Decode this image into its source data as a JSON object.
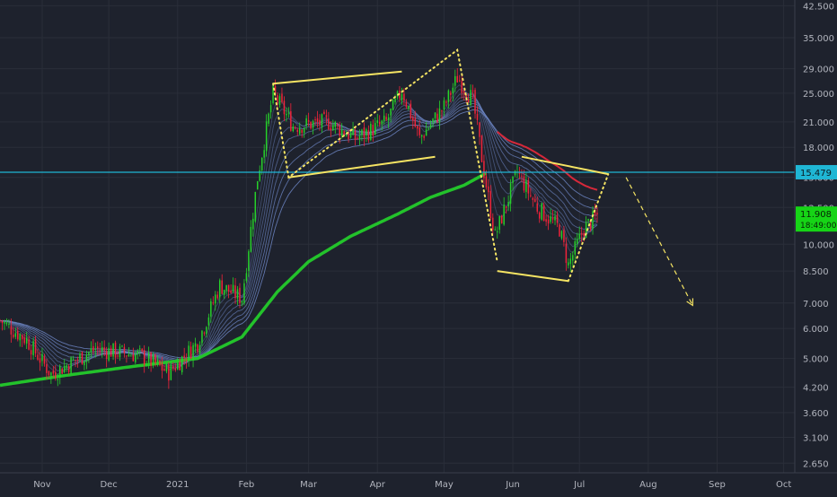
{
  "chart_data": {
    "type": "candlestick",
    "scale": "log",
    "grid": true,
    "ylim": [
      2.5,
      44
    ],
    "xlim": [
      "2020-10-13",
      "2021-10-06"
    ],
    "y_ticks": [
      "42.500",
      "35.000",
      "29.000",
      "25.000",
      "21.000",
      "18.000",
      "15.000",
      "12.500",
      "10.000",
      "8.500",
      "7.000",
      "6.000",
      "5.000",
      "4.200",
      "3.600",
      "3.100",
      "2.650"
    ],
    "x_ticks": [
      {
        "label": "Nov",
        "date": "2020-11-01"
      },
      {
        "label": "Dec",
        "date": "2020-12-01"
      },
      {
        "label": "2021",
        "date": "2021-01-01"
      },
      {
        "label": "Feb",
        "date": "2021-02-01"
      },
      {
        "label": "Mar",
        "date": "2021-03-01"
      },
      {
        "label": "Apr",
        "date": "2021-04-01"
      },
      {
        "label": "May",
        "date": "2021-05-01"
      },
      {
        "label": "Jun",
        "date": "2021-06-01"
      },
      {
        "label": "Jul",
        "date": "2021-07-01"
      },
      {
        "label": "Aug",
        "date": "2021-08-01"
      },
      {
        "label": "Sep",
        "date": "2021-09-01"
      },
      {
        "label": "Oct",
        "date": "2021-10-01"
      }
    ],
    "price_anchors": [
      {
        "date": "2020-10-13",
        "price": 6.3
      },
      {
        "date": "2020-10-25",
        "price": 5.6
      },
      {
        "date": "2020-11-05",
        "price": 4.55
      },
      {
        "date": "2020-11-25",
        "price": 5.3
      },
      {
        "date": "2020-12-15",
        "price": 5.1
      },
      {
        "date": "2020-12-28",
        "price": 4.6
      },
      {
        "date": "2021-01-10",
        "price": 5.5
      },
      {
        "date": "2021-01-20",
        "price": 7.8
      },
      {
        "date": "2021-01-30",
        "price": 7.2
      },
      {
        "date": "2021-02-06",
        "price": 15.0
      },
      {
        "date": "2021-02-13",
        "price": 25.0
      },
      {
        "date": "2021-02-22",
        "price": 20.5
      },
      {
        "date": "2021-03-10",
        "price": 21.0
      },
      {
        "date": "2021-03-22",
        "price": 19.0
      },
      {
        "date": "2021-04-05",
        "price": 21.0
      },
      {
        "date": "2021-04-12",
        "price": 25.5
      },
      {
        "date": "2021-04-20",
        "price": 19.0
      },
      {
        "date": "2021-05-01",
        "price": 23.0
      },
      {
        "date": "2021-05-07",
        "price": 27.5
      },
      {
        "date": "2021-05-14",
        "price": 24.0
      },
      {
        "date": "2021-05-19",
        "price": 15.5
      },
      {
        "date": "2021-05-24",
        "price": 10.5
      },
      {
        "date": "2021-06-03",
        "price": 15.5
      },
      {
        "date": "2021-06-12",
        "price": 12.5
      },
      {
        "date": "2021-06-22",
        "price": 11.0
      },
      {
        "date": "2021-06-26",
        "price": 8.8
      },
      {
        "date": "2021-07-03",
        "price": 11.0
      },
      {
        "date": "2021-07-09",
        "price": 11.9
      }
    ],
    "ma_long": [
      {
        "date": "2020-10-13",
        "price": 4.25
      },
      {
        "date": "2020-11-10",
        "price": 4.5
      },
      {
        "date": "2020-12-10",
        "price": 4.75
      },
      {
        "date": "2021-01-10",
        "price": 5.0
      },
      {
        "date": "2021-01-30",
        "price": 5.7
      },
      {
        "date": "2021-02-15",
        "price": 7.5
      },
      {
        "date": "2021-03-01",
        "price": 9.0
      },
      {
        "date": "2021-03-20",
        "price": 10.5
      },
      {
        "date": "2021-04-10",
        "price": 12.0
      },
      {
        "date": "2021-04-25",
        "price": 13.3
      },
      {
        "date": "2021-05-10",
        "price": 14.3
      },
      {
        "date": "2021-05-20",
        "price": 15.4
      }
    ],
    "horizontal_line": {
      "price": 15.479,
      "label": "15.479"
    },
    "current_price": {
      "price": 11.908,
      "label": "11.908",
      "timer": "18:49:00"
    },
    "drawings": {
      "color": "#f5e463",
      "solid": [
        [
          {
            "date": "2021-02-13",
            "price": 26.5
          },
          {
            "date": "2021-04-12",
            "price": 28.5
          }
        ],
        [
          {
            "date": "2021-02-20",
            "price": 15.0
          },
          {
            "date": "2021-04-27",
            "price": 17.0
          }
        ],
        [
          {
            "date": "2021-06-05",
            "price": 17.0
          },
          {
            "date": "2021-07-14",
            "price": 15.3
          }
        ],
        [
          {
            "date": "2021-05-25",
            "price": 8.5
          },
          {
            "date": "2021-06-26",
            "price": 8.0
          }
        ]
      ],
      "dotted": [
        [
          {
            "date": "2021-02-13",
            "price": 26.5
          },
          {
            "date": "2021-02-20",
            "price": 15.0
          },
          {
            "date": "2021-05-07",
            "price": 32.5
          },
          {
            "date": "2021-05-25",
            "price": 9.0
          }
        ],
        [
          {
            "date": "2021-06-26",
            "price": 8.0
          },
          {
            "date": "2021-07-14",
            "price": 15.3
          }
        ]
      ],
      "dashed_arrow": [
        {
          "date": "2021-07-22",
          "price": 15.0
        },
        {
          "date": "2021-08-21",
          "price": 6.9
        }
      ]
    },
    "colors": {
      "background": "#1e222d",
      "grid": "#2a2e39",
      "up_candle": "#26d12a",
      "down_candle": "#f2243a",
      "ma_long": "#23c22b",
      "ma_ribbon": "#6f88c8",
      "ma_red": "#d6283a",
      "hline": "#1fb6d4",
      "axis_text": "#b2b5be",
      "price_tag_bg": "#16d416"
    }
  }
}
